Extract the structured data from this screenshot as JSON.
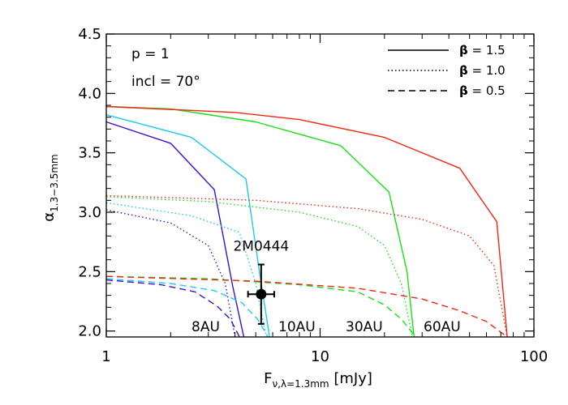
{
  "chart_data": {
    "type": "line",
    "xlabel": {
      "main": "F",
      "sub": "ν,λ=1.3mm",
      "unit": " [mJy]"
    },
    "ylabel": {
      "main": "α",
      "sub": "1.3−3.5mm"
    },
    "xscale": "log",
    "xlim": [
      1,
      100
    ],
    "ylim": [
      1.95,
      4.5
    ],
    "x_ticks": [
      1,
      10,
      100
    ],
    "x_tick_labels": [
      "1",
      "10",
      "100"
    ],
    "y_ticks": [
      2.0,
      2.5,
      3.0,
      3.5,
      4.0,
      4.5
    ],
    "y_tick_labels": [
      "2.0",
      "2.5",
      "3.0",
      "3.5",
      "4.0",
      "4.5"
    ],
    "annotations": {
      "p_label": "p  =  1",
      "incl_label": "incl  =  70°",
      "source_name": "2M0444"
    },
    "legend": {
      "placement": "top-right",
      "entries": [
        {
          "symbol": "β",
          "text": " =  1.5",
          "style": "solid"
        },
        {
          "symbol": "β",
          "text": " =  1.0",
          "style": "dotted"
        },
        {
          "symbol": "β",
          "text": " =  0.5",
          "style": "dashed"
        }
      ]
    },
    "radius_colors": {
      "8AU": "#3b0fd0",
      "10AU": "#1ec8ee",
      "30AU": "#18e018",
      "60AU": "#f02810"
    },
    "radius_labels": [
      {
        "text": "8AU",
        "color": "#3b0fd0"
      },
      {
        "text": "10AU",
        "color": "#1ec8ee"
      },
      {
        "text": "30AU",
        "color": "#18e018"
      },
      {
        "text": "60AU",
        "color": "#f02810"
      }
    ],
    "series": [
      {
        "radius": "8AU",
        "beta": "1.5",
        "style": "solid",
        "color": "#3b0fd0",
        "x": [
          1,
          2,
          3.2,
          3.9,
          4.4
        ],
        "y": [
          3.76,
          3.58,
          3.19,
          2.38,
          1.95
        ]
      },
      {
        "radius": "10AU",
        "beta": "1.5",
        "style": "solid",
        "color": "#1ec8ee",
        "x": [
          1,
          2.5,
          4.5,
          5.2,
          5.8
        ],
        "y": [
          3.82,
          3.63,
          3.28,
          2.5,
          1.95
        ]
      },
      {
        "radius": "30AU",
        "beta": "1.5",
        "style": "solid",
        "color": "#18e018",
        "x": [
          1,
          2,
          5,
          12.5,
          21,
          25.5,
          27.5
        ],
        "y": [
          3.89,
          3.87,
          3.76,
          3.56,
          3.17,
          2.5,
          1.95
        ]
      },
      {
        "radius": "60AU",
        "beta": "1.5",
        "style": "solid",
        "color": "#f02810",
        "x": [
          1,
          4,
          8,
          20,
          45,
          67,
          75
        ],
        "y": [
          3.89,
          3.84,
          3.78,
          3.63,
          3.37,
          2.92,
          1.95
        ]
      },
      {
        "radius": "8AU",
        "beta": "1.0",
        "style": "dotted",
        "color": "#3b0fd0",
        "x": [
          1,
          2,
          3,
          3.6,
          4.0
        ],
        "y": [
          3.02,
          2.91,
          2.72,
          2.4,
          1.95
        ]
      },
      {
        "radius": "10AU",
        "beta": "1.0",
        "style": "dotted",
        "color": "#1ec8ee",
        "x": [
          1,
          2.5,
          4.2,
          5.0,
          5.6
        ],
        "y": [
          3.08,
          2.97,
          2.83,
          2.4,
          1.95
        ]
      },
      {
        "radius": "30AU",
        "beta": "1.0",
        "style": "dotted",
        "color": "#18e018",
        "x": [
          1,
          3,
          8,
          15,
          20,
          24,
          27
        ],
        "y": [
          3.13,
          3.09,
          3.0,
          2.88,
          2.72,
          2.4,
          1.95
        ]
      },
      {
        "radius": "60AU",
        "beta": "1.0",
        "style": "dotted",
        "color": "#f02810",
        "x": [
          1,
          5,
          15,
          30,
          50,
          65,
          75
        ],
        "y": [
          3.14,
          3.1,
          3.03,
          2.94,
          2.8,
          2.55,
          1.95
        ]
      },
      {
        "radius": "8AU",
        "beta": "0.5",
        "style": "dashed",
        "color": "#3b0fd0",
        "x": [
          1,
          1.8,
          2.6,
          3.3,
          3.8,
          4.2
        ],
        "y": [
          2.43,
          2.39,
          2.33,
          2.21,
          2.1,
          1.95
        ]
      },
      {
        "radius": "10AU",
        "beta": "0.5",
        "style": "dashed",
        "color": "#1ec8ee",
        "x": [
          1,
          2,
          3.2,
          4.3,
          5.1,
          5.7
        ],
        "y": [
          2.44,
          2.4,
          2.34,
          2.24,
          2.1,
          1.95
        ]
      },
      {
        "radius": "30AU",
        "beta": "0.5",
        "style": "dashed",
        "color": "#18e018",
        "x": [
          1,
          3,
          8,
          15,
          20,
          24,
          28
        ],
        "y": [
          2.46,
          2.44,
          2.39,
          2.33,
          2.22,
          2.1,
          1.95
        ]
      },
      {
        "radius": "60AU",
        "beta": "0.5",
        "style": "dashed",
        "color": "#f02810",
        "x": [
          1,
          5,
          15,
          30,
          45,
          60,
          75
        ],
        "y": [
          2.46,
          2.42,
          2.36,
          2.27,
          2.17,
          2.08,
          1.95
        ]
      }
    ],
    "data_point": {
      "name": "2M0444",
      "x": 5.3,
      "y": 2.31,
      "x_err": [
        4.6,
        6.1
      ],
      "y_err": [
        2.06,
        2.56
      ],
      "color": "#000000"
    },
    "grid": false
  }
}
